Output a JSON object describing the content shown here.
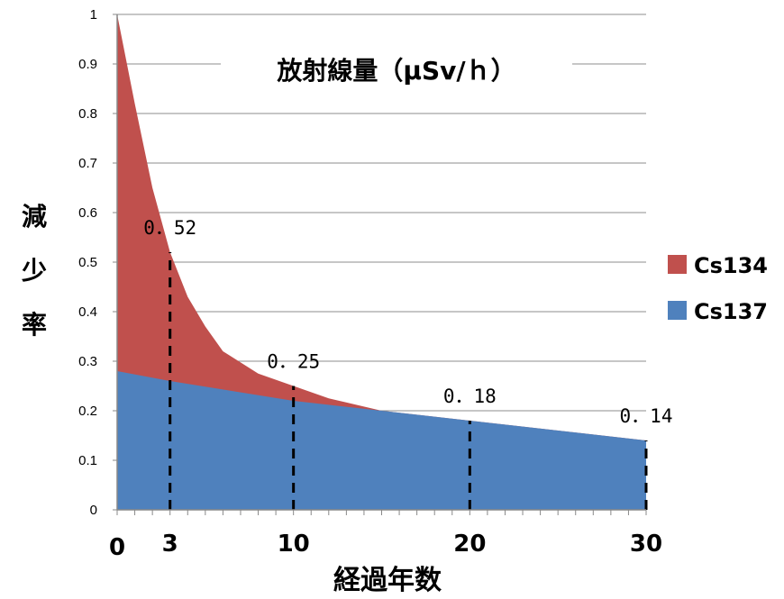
{
  "chart_data": {
    "type": "area",
    "title": "放射線量（μSv/ｈ）",
    "xlabel": "経過年数",
    "ylabel": "減少率",
    "xlim": [
      0,
      30
    ],
    "ylim": [
      0,
      1
    ],
    "x_ticks": [
      "0",
      "3",
      "10",
      "20",
      "30"
    ],
    "y_ticks": [
      "0",
      "0.1",
      "0.2",
      "0.3",
      "0.4",
      "0.5",
      "0.6",
      "0.7",
      "0.8",
      "0.9",
      "1"
    ],
    "grid": true,
    "legend_position": "right",
    "series": [
      {
        "name": "Cs137",
        "color": "#4F81BD",
        "x": [
          0,
          3,
          10,
          15,
          20,
          30
        ],
        "values": [
          0.28,
          0.26,
          0.22,
          0.2,
          0.18,
          0.14
        ]
      },
      {
        "name": "Cs134",
        "color": "#C0504D",
        "x": [
          0,
          1,
          2,
          3,
          4,
          5,
          6,
          8,
          10,
          12,
          15
        ],
        "values": [
          1.0,
          0.82,
          0.65,
          0.52,
          0.43,
          0.37,
          0.32,
          0.275,
          0.25,
          0.225,
          0.2
        ]
      }
    ],
    "reference_lines_x": [
      3,
      10,
      20,
      30
    ],
    "annotations": [
      {
        "x": 3,
        "y": 0.52,
        "text": "0．52"
      },
      {
        "x": 10,
        "y": 0.25,
        "text": "0．25"
      },
      {
        "x": 20,
        "y": 0.18,
        "text": "0．18"
      },
      {
        "x": 30,
        "y": 0.14,
        "text": "0．14"
      }
    ]
  }
}
